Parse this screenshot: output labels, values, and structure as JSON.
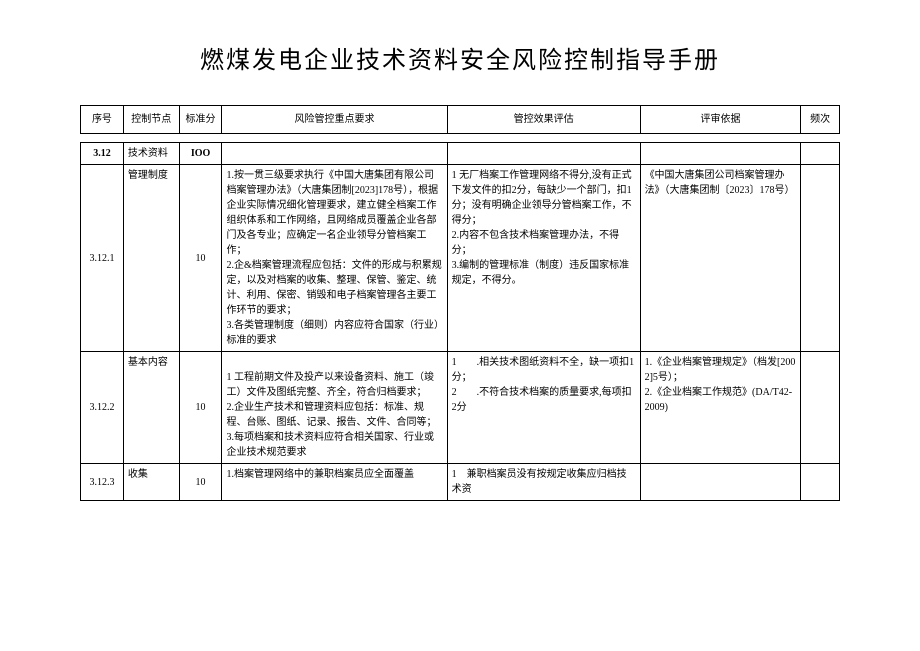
{
  "title": "燃煤发电企业技术资料安全风险控制指导手册",
  "headers": {
    "seq": "序号",
    "node": "控制节点",
    "score": "标准分",
    "req": "风险管控重点要求",
    "eval": "管控效果评估",
    "basis": "评审依据",
    "freq": "频次"
  },
  "rows": {
    "r0": {
      "seq": "3.12",
      "node": "技术资料",
      "score": "IOO",
      "req": "",
      "eval": "",
      "basis": "",
      "freq": ""
    },
    "r1": {
      "seq": "3.12.1",
      "node": "管理制度",
      "score": "10",
      "req": "1.按一贯三级要求执行《中国大唐集团有限公司档案管理办法》（大唐集团制[2023]178号），根据企业实际情况细化管理要求，建立健全档案工作组织体系和工作网络，且网络成员覆盖企业各部门及各专业；应确定一名企业领导分管档案工作；\n2.企&档案管理流程应包括：文件的形成与积累规定，以及对档案的收集、整理、保管、鉴定、统计、利用、保密、销毁和电子档案管理各主要工作环节的要求；\n3.各类管理制度（细则）内容应符合国家（行业）标准的要求",
      "eval": "1 无厂档案工作管理网络不得分,没有正式下发文件的扣2分，每缺少一个部门，扣1分；没有明确企业领导分管档案工作，不得分；\n2.内容不包含技术档案管理办法，不得分；\n3.编制的管理标准（制度）违反国家标准规定，不得分。",
      "basis": "《中国大唐集团公司档案管理办法》（大唐集团制〔2023〕178号）",
      "freq": ""
    },
    "r2": {
      "seq": "3.12.2",
      "node": "基本内容",
      "score": "10",
      "req": "\n1 工程前期文件及投产以来设备资料、施工（竣工）文件及图纸完整、齐全，符合归档要求；\n2.企业生产技术和管理资料应包括：标准、规程、台账、图纸、记录、报告、文件、合同等；\n3.每项档案和技术资料应符合相关国家、行业或企业技术规范要求",
      "eval": "1　　.相关技术图纸资料不全，缺一项扣1分；\n2　　.不符合技术档案的质量要求,每项扣2分",
      "basis": "1.《企业档案管理规定》（档发[2002]5号）；\n2.《企业档案工作规范》(DA/T42-2009)",
      "freq": ""
    },
    "r3": {
      "seq": "3.12.3",
      "node": "收集",
      "score": "10",
      "req": "1.档案管理网络中的兼职档案员应全面覆盖",
      "eval": "1　兼职档案员没有按规定收集应归档技术资",
      "basis": "",
      "freq": ""
    }
  }
}
